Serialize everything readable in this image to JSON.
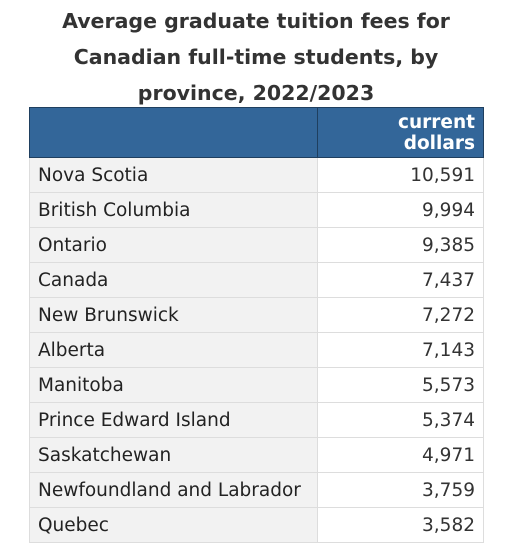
{
  "title_lines": [
    "Average graduate tuition fees for",
    "Canadian full-time students, by",
    "province, 2022/2023"
  ],
  "chart_data": {
    "type": "table",
    "title": "Average graduate tuition fees for Canadian full-time students, by province, 2022/2023",
    "columns": [
      "",
      "current dollars"
    ],
    "rows": [
      {
        "label": "Nova Scotia",
        "value": "10,591"
      },
      {
        "label": "British Columbia",
        "value": "9,994"
      },
      {
        "label": "Ontario",
        "value": "9,385"
      },
      {
        "label": "Canada",
        "value": "7,437"
      },
      {
        "label": "New Brunswick",
        "value": "7,272"
      },
      {
        "label": "Alberta",
        "value": "7,143"
      },
      {
        "label": "Manitoba",
        "value": "5,573"
      },
      {
        "label": "Prince Edward Island",
        "value": "5,374"
      },
      {
        "label": "Saskatchewan",
        "value": "4,971"
      },
      {
        "label": "Newfoundland and Labrador",
        "value": "3,759"
      },
      {
        "label": "Quebec",
        "value": "3,582"
      }
    ]
  },
  "colors": {
    "header_background": "#336699",
    "header_text": "#ffffff",
    "label_cell_background": "#f2f2f2",
    "grid_line": "#dddddd"
  }
}
